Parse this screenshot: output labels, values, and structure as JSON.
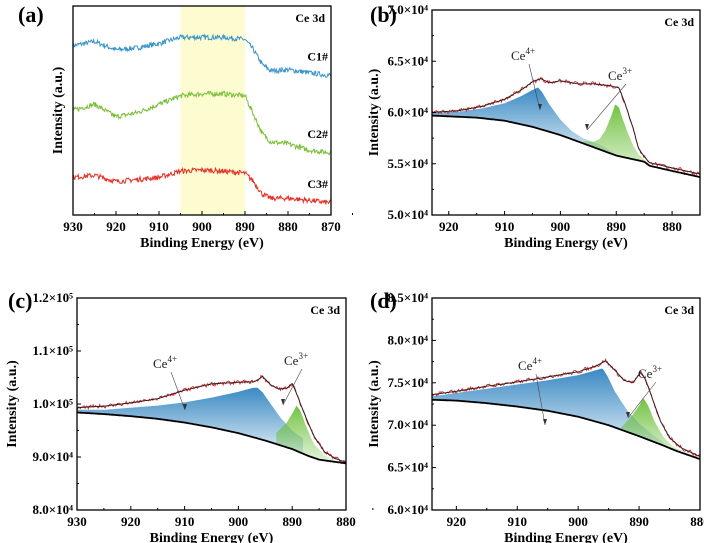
{
  "chart_data": [
    {
      "panel": "(a)",
      "type": "line",
      "title": "Ce 3d",
      "xlabel": "Binding Energy (eV)",
      "ylabel": "Intensity (a.u.)",
      "xlim": [
        930,
        870
      ],
      "ylim": [
        0,
        10
      ],
      "xticks": [
        930,
        920,
        910,
        900,
        890,
        880,
        870
      ],
      "highlight_region": [
        905,
        890
      ],
      "highlight_color": "#fdfcd0",
      "series": [
        {
          "name": "C1#",
          "color": "#3b95c9",
          "points": [
            [
              930,
              8.1
            ],
            [
              925,
              8.3
            ],
            [
              920,
              7.9
            ],
            [
              915,
              8.0
            ],
            [
              910,
              8.2
            ],
            [
              905,
              8.5
            ],
            [
              900,
              8.5
            ],
            [
              895,
              8.5
            ],
            [
              890,
              8.4
            ],
            [
              888,
              7.9
            ],
            [
              886,
              7.2
            ],
            [
              884,
              6.9
            ],
            [
              880,
              6.95
            ],
            [
              875,
              6.8
            ],
            [
              871,
              6.7
            ]
          ]
        },
        {
          "name": "C2#",
          "color": "#7cbf3a",
          "points": [
            [
              930,
              5.0
            ],
            [
              925,
              5.3
            ],
            [
              920,
              4.7
            ],
            [
              915,
              4.9
            ],
            [
              910,
              5.3
            ],
            [
              905,
              5.7
            ],
            [
              900,
              5.8
            ],
            [
              895,
              5.8
            ],
            [
              890,
              5.7
            ],
            [
              888,
              4.8
            ],
            [
              886,
              3.9
            ],
            [
              884,
              3.5
            ],
            [
              880,
              3.4
            ],
            [
              875,
              3.1
            ],
            [
              871,
              3.0
            ]
          ]
        },
        {
          "name": "C3#",
          "color": "#e63228",
          "points": [
            [
              930,
              1.8
            ],
            [
              925,
              1.9
            ],
            [
              920,
              1.6
            ],
            [
              915,
              1.7
            ],
            [
              910,
              1.8
            ],
            [
              905,
              2.1
            ],
            [
              900,
              2.15
            ],
            [
              895,
              2.1
            ],
            [
              890,
              2.0
            ],
            [
              888,
              1.6
            ],
            [
              886,
              1.0
            ],
            [
              884,
              0.8
            ],
            [
              880,
              0.8
            ],
            [
              875,
              0.7
            ],
            [
              871,
              0.6
            ]
          ]
        }
      ]
    },
    {
      "panel": "(b)",
      "type": "area",
      "title": "Ce 3d",
      "xlabel": "Binding Energy (eV)",
      "ylabel": "Intensity (a.u.)",
      "xlim": [
        923,
        875
      ],
      "ylim": [
        50000,
        70000
      ],
      "xticks": [
        920,
        910,
        900,
        890,
        880
      ],
      "yticks": [
        50000,
        55000,
        60000,
        65000,
        70000
      ],
      "ytick_labels": [
        "5.0×10⁴",
        "5.5×10⁴",
        "6.0×10⁴",
        "6.5×10⁴",
        "7.0×10⁴"
      ],
      "annotations": [
        "Ce4+",
        "Ce3+"
      ],
      "background": [
        [
          923,
          59700
        ],
        [
          915,
          59500
        ],
        [
          910,
          59200
        ],
        [
          905,
          58600
        ],
        [
          900,
          57800
        ],
        [
          895,
          56800
        ],
        [
          890,
          55800
        ],
        [
          885,
          55200
        ],
        [
          884,
          54800
        ],
        [
          880,
          54300
        ],
        [
          875,
          53700
        ]
      ],
      "ce4": [
        [
          923,
          59950
        ],
        [
          918,
          60100
        ],
        [
          914,
          60400
        ],
        [
          910,
          60900
        ],
        [
          907,
          61600
        ],
        [
          905,
          62200
        ],
        [
          904,
          62450
        ],
        [
          903.3,
          62000
        ],
        [
          902,
          60800
        ],
        [
          900,
          59300
        ],
        [
          898,
          58200
        ],
        [
          896,
          57500
        ],
        [
          894,
          57100
        ],
        [
          892,
          56600
        ],
        [
          890,
          55900
        ]
      ],
      "ce3": [
        [
          896,
          57200
        ],
        [
          894,
          57150
        ],
        [
          893,
          57400
        ],
        [
          892,
          58200
        ],
        [
          891,
          59500
        ],
        [
          890.2,
          60800
        ],
        [
          889.5,
          60500
        ],
        [
          889,
          59600
        ],
        [
          888,
          58100
        ],
        [
          887,
          56800
        ],
        [
          886,
          55900
        ],
        [
          885,
          55400
        ],
        [
          884,
          54900
        ],
        [
          880,
          54400
        ],
        [
          875,
          53800
        ]
      ],
      "envelope": [
        [
          923,
          60000
        ],
        [
          918,
          60200
        ],
        [
          914,
          60600
        ],
        [
          910,
          61300
        ],
        [
          907,
          62200
        ],
        [
          905,
          63000
        ],
        [
          903.5,
          63300
        ],
        [
          902,
          62900
        ],
        [
          900,
          63100
        ],
        [
          897,
          62800
        ],
        [
          894,
          62800
        ],
        [
          891,
          62600
        ],
        [
          889.5,
          62400
        ],
        [
          888.5,
          61000
        ],
        [
          887,
          58500
        ],
        [
          886,
          56500
        ],
        [
          885,
          55700
        ],
        [
          884,
          55100
        ],
        [
          880,
          54600
        ],
        [
          875,
          54000
        ]
      ],
      "raw_color": "#d8232a",
      "ce4_color": "#2f83c0",
      "ce3_color": "#6cbf3a"
    },
    {
      "panel": "(c)",
      "type": "area",
      "title": "Ce 3d",
      "xlabel": "Binding Energy (eV)",
      "ylabel": "Intensity (a.u.)",
      "xlim": [
        930,
        880
      ],
      "ylim": [
        80000,
        120000
      ],
      "xticks": [
        930,
        920,
        910,
        900,
        890,
        880
      ],
      "yticks": [
        80000,
        90000,
        100000,
        110000,
        120000
      ],
      "ytick_labels": [
        "8.0×10⁴",
        "9.0×10⁴",
        "1.0×10⁵",
        "1.1×10⁵",
        "1.2×10⁵"
      ],
      "annotations": [
        "Ce4+",
        "Ce3+"
      ],
      "background": [
        [
          930,
          98400
        ],
        [
          925,
          98100
        ],
        [
          920,
          97700
        ],
        [
          915,
          97200
        ],
        [
          910,
          96500
        ],
        [
          905,
          95600
        ],
        [
          900,
          94500
        ],
        [
          895,
          93100
        ],
        [
          890,
          91500
        ],
        [
          887,
          90200
        ],
        [
          885,
          89500
        ],
        [
          880,
          88800
        ]
      ],
      "ce4": [
        [
          930,
          98900
        ],
        [
          925,
          98900
        ],
        [
          920,
          99300
        ],
        [
          915,
          99700
        ],
        [
          910,
          100300
        ],
        [
          905,
          101200
        ],
        [
          900,
          102300
        ],
        [
          897.5,
          103000
        ],
        [
          896.5,
          103100
        ],
        [
          895.5,
          102200
        ],
        [
          894,
          100000
        ],
        [
          892,
          97200
        ],
        [
          890,
          95000
        ],
        [
          888,
          93500
        ]
      ],
      "ce3": [
        [
          893,
          94500
        ],
        [
          891,
          96500
        ],
        [
          890,
          98200
        ],
        [
          889.2,
          99700
        ],
        [
          888.5,
          98800
        ],
        [
          887.5,
          96000
        ],
        [
          886,
          92500
        ],
        [
          884,
          90300
        ],
        [
          882,
          89400
        ],
        [
          880,
          88900
        ]
      ],
      "envelope": [
        [
          930,
          99300
        ],
        [
          925,
          99600
        ],
        [
          920,
          100200
        ],
        [
          915,
          101000
        ],
        [
          910,
          102600
        ],
        [
          905,
          103800
        ],
        [
          900,
          104100
        ],
        [
          897,
          104200
        ],
        [
          895.5,
          105200
        ],
        [
          894,
          103600
        ],
        [
          892.5,
          102800
        ],
        [
          891,
          103000
        ],
        [
          890,
          103900
        ],
        [
          889,
          101500
        ],
        [
          888,
          98800
        ],
        [
          886,
          94000
        ],
        [
          884,
          91000
        ],
        [
          882,
          89700
        ],
        [
          880,
          89000
        ]
      ],
      "raw_color": "#d8232a",
      "ce4_color": "#2f83c0",
      "ce3_color": "#6cbf3a"
    },
    {
      "panel": "(d)",
      "type": "area",
      "title": "Ce 3d",
      "xlabel": "Binding Energy (eV)",
      "ylabel": "Intensity (a.u.)",
      "xlim": [
        924,
        880
      ],
      "ylim": [
        60000,
        85000
      ],
      "xticks": [
        920,
        910,
        900,
        890,
        880
      ],
      "yticks": [
        60000,
        65000,
        70000,
        75000,
        80000,
        85000
      ],
      "ytick_labels": [
        "6.0×10⁴",
        "6.5×10⁴",
        "7.0×10⁴",
        "7.5×10⁴",
        "8.0×10⁴",
        "8.5×10⁴"
      ],
      "annotations": [
        "Ce4+",
        "Ce3+"
      ],
      "background": [
        [
          924,
          73000
        ],
        [
          920,
          72900
        ],
        [
          915,
          72600
        ],
        [
          910,
          72200
        ],
        [
          905,
          71700
        ],
        [
          900,
          71000
        ],
        [
          895,
          70000
        ],
        [
          890,
          68700
        ],
        [
          886,
          67600
        ],
        [
          884,
          67000
        ],
        [
          880,
          66000
        ]
      ],
      "ce4": [
        [
          924,
          73400
        ],
        [
          920,
          73800
        ],
        [
          915,
          74300
        ],
        [
          910,
          74800
        ],
        [
          905,
          75300
        ],
        [
          900,
          75900
        ],
        [
          897,
          76500
        ],
        [
          896,
          76700
        ],
        [
          895.2,
          75800
        ],
        [
          894,
          74000
        ],
        [
          892,
          71800
        ],
        [
          890,
          70200
        ],
        [
          888,
          69000
        ],
        [
          886,
          68000
        ]
      ],
      "ce3": [
        [
          893,
          69700
        ],
        [
          891.5,
          70800
        ],
        [
          890,
          72300
        ],
        [
          889.3,
          73200
        ],
        [
          888.5,
          72300
        ],
        [
          887.5,
          70500
        ],
        [
          886,
          68600
        ],
        [
          884.5,
          67500
        ],
        [
          882,
          66700
        ],
        [
          880,
          66100
        ]
      ],
      "envelope": [
        [
          924,
          73600
        ],
        [
          920,
          74000
        ],
        [
          915,
          74600
        ],
        [
          910,
          75100
        ],
        [
          905,
          75700
        ],
        [
          900,
          76300
        ],
        [
          897,
          77000
        ],
        [
          895.5,
          77600
        ],
        [
          894,
          76500
        ],
        [
          892.5,
          75300
        ],
        [
          891,
          75000
        ],
        [
          889.8,
          76200
        ],
        [
          889,
          75500
        ],
        [
          888,
          73500
        ],
        [
          886.5,
          70500
        ],
        [
          885,
          68500
        ],
        [
          883,
          67300
        ],
        [
          880,
          66300
        ]
      ],
      "raw_color": "#d8232a",
      "ce4_color": "#2f83c0",
      "ce3_color": "#6cbf3a"
    }
  ],
  "labels": {
    "ce4_base": "Ce",
    "ce4_sup": "4+",
    "ce3_base": "Ce",
    "ce3_sup": "3+"
  }
}
